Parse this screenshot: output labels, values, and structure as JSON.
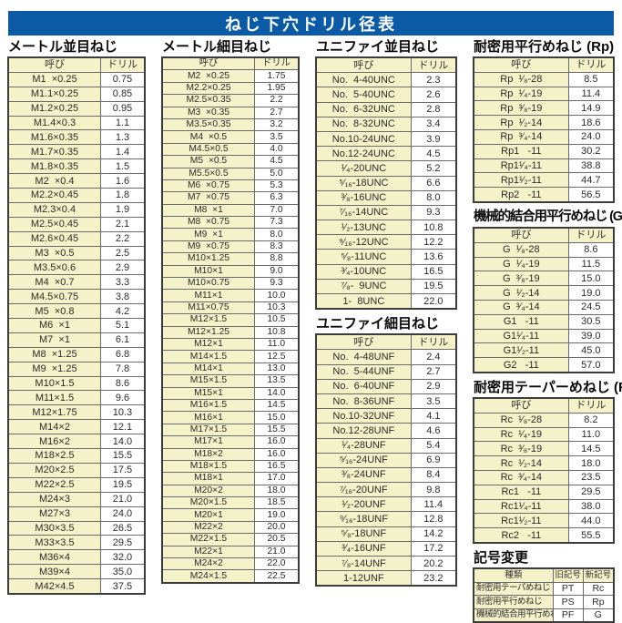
{
  "page_title": "ねじ下穴ドリル径表",
  "colors": {
    "header_blue": "#0b5aa5",
    "cell_cream": "#f5f1c8"
  },
  "sections": {
    "metric_coarse": {
      "title": "メートル並目ねじ",
      "headers": [
        "呼び",
        "ドリル"
      ],
      "rows": [
        [
          "M1  ×0.25",
          "0.75"
        ],
        [
          "M1.1×0.25",
          "0.85"
        ],
        [
          "M1.2×0.25",
          "0.95"
        ],
        [
          "M1.4×0.3",
          "1.1"
        ],
        [
          "M1.6×0.35",
          "1.3"
        ],
        [
          "M1.7×0.35",
          "1.4"
        ],
        [
          "M1.8×0.35",
          "1.5"
        ],
        [
          "M2  ×0.4",
          "1.6"
        ],
        [
          "M2.2×0.45",
          "1.8"
        ],
        [
          "M2.3×0.4",
          "1.9"
        ],
        [
          "M2.5×0.45",
          "2.1"
        ],
        [
          "M2.6×0.45",
          "2.2"
        ],
        [
          "M3  ×0.5",
          "2.5"
        ],
        [
          "M3.5×0.6",
          "2.9"
        ],
        [
          "M4  ×0.7",
          "3.3"
        ],
        [
          "M4.5×0.75",
          "3.8"
        ],
        [
          "M5  ×0.8",
          "4.2"
        ],
        [
          "M6  ×1",
          "5.1"
        ],
        [
          "M7  ×1",
          "6.1"
        ],
        [
          "M8  ×1.25",
          "6.8"
        ],
        [
          "M9  ×1.25",
          "7.8"
        ],
        [
          "M10×1.5",
          "8.6"
        ],
        [
          "M11×1.5",
          "9.6"
        ],
        [
          "M12×1.75",
          "10.3"
        ],
        [
          "M14×2",
          "12.1"
        ],
        [
          "M16×2",
          "14.0"
        ],
        [
          "M18×2.5",
          "15.5"
        ],
        [
          "M20×2.5",
          "17.5"
        ],
        [
          "M22×2.5",
          "19.5"
        ],
        [
          "M24×3",
          "21.0"
        ],
        [
          "M27×3",
          "24.0"
        ],
        [
          "M30×3.5",
          "26.5"
        ],
        [
          "M33×3.5",
          "29.5"
        ],
        [
          "M36×4",
          "32.0"
        ],
        [
          "M39×4",
          "35.0"
        ],
        [
          "M42×4.5",
          "37.5"
        ]
      ]
    },
    "metric_fine": {
      "title": "メートル細目ねじ",
      "headers": [
        "呼び",
        "ドリル"
      ],
      "rows": [
        [
          "M2  ×0.25",
          "1.75"
        ],
        [
          "M2.2×0.25",
          "1.95"
        ],
        [
          "M2.5×0.35",
          "2.2"
        ],
        [
          "M3  ×0.35",
          "2.7"
        ],
        [
          "M3.5×0.35",
          "3.2"
        ],
        [
          "M4  ×0.5",
          "3.5"
        ],
        [
          "M4.5×0.5",
          "4.0"
        ],
        [
          "M5  ×0.5",
          "4.5"
        ],
        [
          "M5.5×0.5",
          "5.0"
        ],
        [
          "M6  ×0.75",
          "5.3"
        ],
        [
          "M7  ×0.75",
          "6.3"
        ],
        [
          "M8  ×1",
          "7.0"
        ],
        [
          "M8  ×0.75",
          "7.3"
        ],
        [
          "M9  ×1",
          "8.0"
        ],
        [
          "M9  ×0.75",
          "8.3"
        ],
        [
          "M10×1.25",
          "8.8"
        ],
        [
          "M10×1",
          "9.0"
        ],
        [
          "M10×0.75",
          "9.3"
        ],
        [
          "M11×1",
          "10.0"
        ],
        [
          "M11×0.75",
          "10.3"
        ],
        [
          "M12×1.5",
          "10.5"
        ],
        [
          "M12×1.25",
          "10.8"
        ],
        [
          "M12×1",
          "11.0"
        ],
        [
          "M14×1.5",
          "12.5"
        ],
        [
          "M14×1",
          "13.0"
        ],
        [
          "M15×1.5",
          "13.5"
        ],
        [
          "M15×1",
          "14.0"
        ],
        [
          "M16×1.5",
          "14.5"
        ],
        [
          "M16×1",
          "15.0"
        ],
        [
          "M17×1.5",
          "15.5"
        ],
        [
          "M17×1",
          "16.0"
        ],
        [
          "M18×2",
          "16.0"
        ],
        [
          "M18×1.5",
          "16.5"
        ],
        [
          "M18×1",
          "17.0"
        ],
        [
          "M20×2",
          "18.0"
        ],
        [
          "M20×1.5",
          "18.5"
        ],
        [
          "M20×1",
          "19.0"
        ],
        [
          "M22×2",
          "20.0"
        ],
        [
          "M22×1.5",
          "20.5"
        ],
        [
          "M22×1",
          "21.0"
        ],
        [
          "M24×2",
          "22.0"
        ],
        [
          "M24×1.5",
          "22.5"
        ]
      ]
    },
    "unified_coarse": {
      "title": "ユニファイ並目ねじ",
      "headers": [
        "呼び",
        "ドリル"
      ],
      "rows": [
        [
          "No.  4-40UNC",
          "2.3"
        ],
        [
          "No.  5-40UNC",
          "2.6"
        ],
        [
          "No.  6-32UNC",
          "2.8"
        ],
        [
          "No.  8-32UNC",
          "3.4"
        ],
        [
          "No.10-24UNC",
          "3.9"
        ],
        [
          "No.12-24UNC",
          "4.5"
        ],
        [
          "¹⁄₄-20UNC",
          "5.2"
        ],
        [
          "⁵⁄₁₆-18UNC",
          "6.6"
        ],
        [
          "³⁄₈-16UNC",
          "8.0"
        ],
        [
          "⁷⁄₁₆-14UNC",
          "9.3"
        ],
        [
          "¹⁄₂-13UNC",
          "10.8"
        ],
        [
          "⁹⁄₁₆-12UNC",
          "12.2"
        ],
        [
          "⁵⁄₈-11UNC",
          "13.6"
        ],
        [
          "³⁄₄-10UNC",
          "16.5"
        ],
        [
          "⁷⁄₈-  9UNC",
          "19.5"
        ],
        [
          "1-  8UNC",
          "22.0"
        ]
      ]
    },
    "unified_fine": {
      "title": "ユニファイ細目ねじ",
      "headers": [
        "呼び",
        "ドリル"
      ],
      "rows": [
        [
          "No.  4-48UNF",
          "2.4"
        ],
        [
          "No.  5-44UNF",
          "2.7"
        ],
        [
          "No.  6-40UNF",
          "2.9"
        ],
        [
          "No.  8-36UNF",
          "3.5"
        ],
        [
          "No.10-32UNF",
          "4.1"
        ],
        [
          "No.12-28UNF",
          "4.6"
        ],
        [
          "¹⁄₄-28UNF",
          "5.4"
        ],
        [
          "⁵⁄₁₆-24UNF",
          "6.9"
        ],
        [
          "³⁄₈-24UNF",
          "8.4"
        ],
        [
          "⁷⁄₁₆-20UNF",
          "9.8"
        ],
        [
          "¹⁄₂-20UNF",
          "11.4"
        ],
        [
          "⁹⁄₁₆-18UNF",
          "12.8"
        ],
        [
          "⁵⁄₈-18UNF",
          "14.2"
        ],
        [
          "³⁄₄-16UNF",
          "17.2"
        ],
        [
          "⁷⁄₈-14UNF",
          "20.2"
        ],
        [
          "1-12UNF",
          "23.2"
        ]
      ]
    },
    "rp": {
      "title": "耐密用平行めねじ (Rp)",
      "headers": [
        "呼び",
        "ドリル"
      ],
      "rows": [
        [
          "Rp  ¹⁄₈-28",
          "8.5"
        ],
        [
          "Rp  ¹⁄₄-19",
          "11.4"
        ],
        [
          "Rp  ³⁄₈-19",
          "14.9"
        ],
        [
          "Rp  ¹⁄₂-14",
          "18.6"
        ],
        [
          "Rp  ³⁄₄-14",
          "24.0"
        ],
        [
          "Rp1   -11",
          "30.2"
        ],
        [
          "Rp1¹⁄₄-11",
          "38.8"
        ],
        [
          "Rp1¹⁄₂-11",
          "44.7"
        ],
        [
          "Rp2   -11",
          "56.5"
        ]
      ]
    },
    "g": {
      "title": "機械的結合用平行めねじ (G)",
      "headers": [
        "呼び",
        "ドリル"
      ],
      "rows": [
        [
          "G  ¹⁄₈-28",
          "8.6"
        ],
        [
          "G  ¹⁄₄-19",
          "11.5"
        ],
        [
          "G  ³⁄₈-19",
          "15.0"
        ],
        [
          "G  ¹⁄₂-14",
          "19.0"
        ],
        [
          "G  ³⁄₄-14",
          "24.5"
        ],
        [
          "G1   -11",
          "30.5"
        ],
        [
          "G1¹⁄₄-11",
          "39.0"
        ],
        [
          "G1¹⁄₂-11",
          "45.0"
        ],
        [
          "G2   -11",
          "57.0"
        ]
      ]
    },
    "rc": {
      "title": "耐密用テーパーめねじ (Rc)",
      "headers": [
        "呼び",
        "ドリル"
      ],
      "rows": [
        [
          "Rc  ¹⁄₈-28",
          "8.2"
        ],
        [
          "Rc  ¹⁄₄-19",
          "11.0"
        ],
        [
          "Rc  ³⁄₈-19",
          "14.5"
        ],
        [
          "Rc  ¹⁄₂-14",
          "18.0"
        ],
        [
          "Rc  ³⁄₄-14",
          "23.5"
        ],
        [
          "Rc1   -11",
          "29.5"
        ],
        [
          "Rc1¹⁄₄-11",
          "38.0"
        ],
        [
          "Rc1¹⁄₂-11",
          "44.0"
        ],
        [
          "Rc2   -11",
          "55.5"
        ]
      ]
    },
    "symbol_change": {
      "title": "記号変更",
      "headers": [
        "種類",
        "旧記号",
        "新記号"
      ],
      "rows": [
        [
          "耐密用テーパめねじ",
          "PT",
          "Rc"
        ],
        [
          "耐密用平行めねじ",
          "PS",
          "Rp"
        ],
        [
          "機械的結合用平行めねじ",
          "PF",
          "G"
        ]
      ]
    }
  }
}
